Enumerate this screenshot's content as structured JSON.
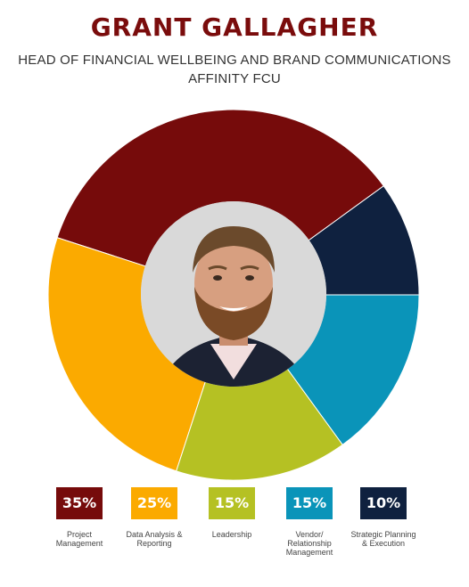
{
  "header": {
    "name": "GRANT GALLAGHER",
    "job_title": "HEAD OF FINANCIAL WELLBEING AND BRAND COMMUNICATIONS",
    "company": "AFFINITY FCU"
  },
  "photo": {
    "description_icon": "profile-photo"
  },
  "chart_data": {
    "type": "pie",
    "variant": "donut",
    "categories": [
      "Project Management",
      "Data Analysis & Reporting",
      "Leadership",
      "Vendor/ Relationship Management",
      "Strategic Planning & Execution"
    ],
    "values": [
      35,
      25,
      15,
      15,
      10
    ],
    "value_labels": [
      "35%",
      "25%",
      "15%",
      "15%",
      "10%"
    ],
    "colors": [
      "#760b0b",
      "#fbaa00",
      "#b5c123",
      "#0a94b9",
      "#0f213f"
    ],
    "legend_position": "bottom"
  },
  "legend": [
    {
      "value": "35%",
      "label": "Project Management",
      "color": "#760b0b"
    },
    {
      "value": "25%",
      "label": "Data Analysis & Reporting",
      "color": "#fbaa00"
    },
    {
      "value": "15%",
      "label": "Leadership",
      "color": "#b5c123"
    },
    {
      "value": "15%",
      "label": "Vendor/ Relationship Management",
      "color": "#0a94b9"
    },
    {
      "value": "10%",
      "label": "Strategic Planning & Execution",
      "color": "#0f213f"
    }
  ]
}
